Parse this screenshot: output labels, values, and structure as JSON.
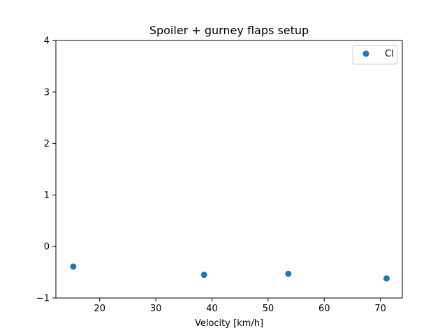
{
  "chart_data": {
    "type": "scatter",
    "title": "Spoiler + gurney flaps setup",
    "xlabel": "Velocity [km/h]",
    "ylabel": "",
    "xlim": [
      12.2,
      73.9
    ],
    "ylim": [
      -1,
      4
    ],
    "xticks": [
      20,
      30,
      40,
      50,
      60,
      70
    ],
    "yticks": [
      -1,
      0,
      1,
      2,
      3,
      4
    ],
    "grid": false,
    "legend_position": "top-right",
    "series": [
      {
        "name": "Cl",
        "color": "#1f77b4",
        "marker": "circle",
        "points": [
          {
            "x": 15.3,
            "y": -0.39
          },
          {
            "x": 38.6,
            "y": -0.55
          },
          {
            "x": 53.6,
            "y": -0.53
          },
          {
            "x": 71.1,
            "y": -0.62
          }
        ]
      }
    ]
  }
}
